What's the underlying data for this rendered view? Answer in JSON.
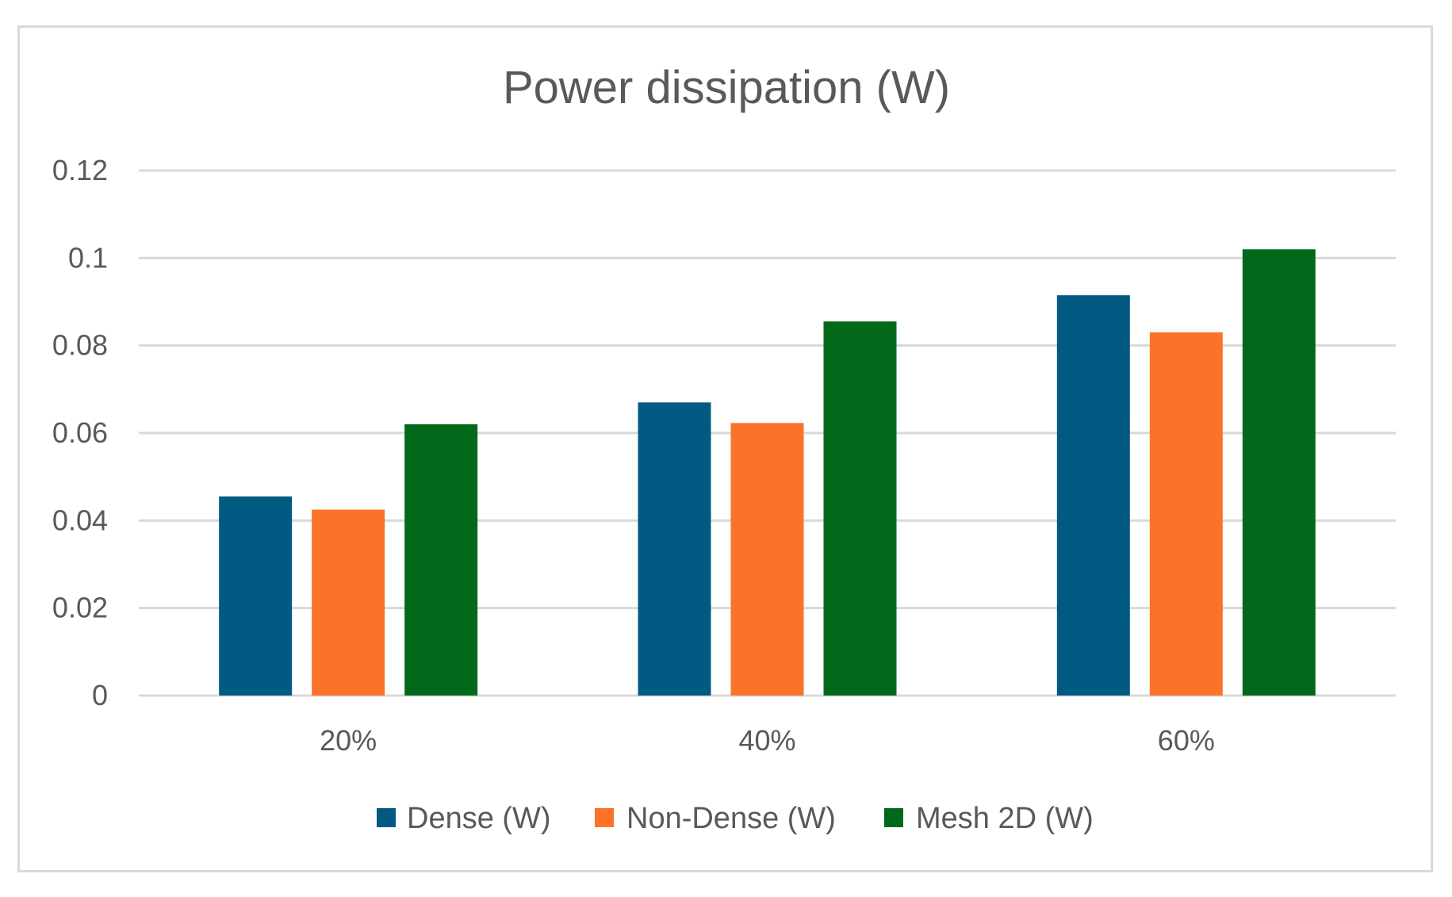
{
  "chart_data": {
    "type": "bar",
    "title": "Power dissipation (W)",
    "xlabel": "",
    "ylabel": "",
    "categories": [
      "20%",
      "40%",
      "60%"
    ],
    "series": [
      {
        "name": "Dense (W)",
        "color": "#005a82",
        "values": [
          0.0455,
          0.067,
          0.0915
        ]
      },
      {
        "name": "Non-Dense (W)",
        "color": "#fb7229",
        "values": [
          0.0425,
          0.0623,
          0.083
        ]
      },
      {
        "name": "Mesh 2D (W)",
        "color": "#03691a",
        "values": [
          0.062,
          0.0855,
          0.102
        ]
      }
    ],
    "ylim": [
      0,
      0.12
    ],
    "yticks": [
      "0",
      "0.02",
      "0.04",
      "0.06",
      "0.08",
      "0.1",
      "0.12"
    ],
    "ytick_values": [
      0,
      0.02,
      0.04,
      0.06,
      0.08,
      0.1,
      0.12
    ],
    "grid": true,
    "grid_color": "#d9d9d9",
    "legend_position": "bottom"
  }
}
